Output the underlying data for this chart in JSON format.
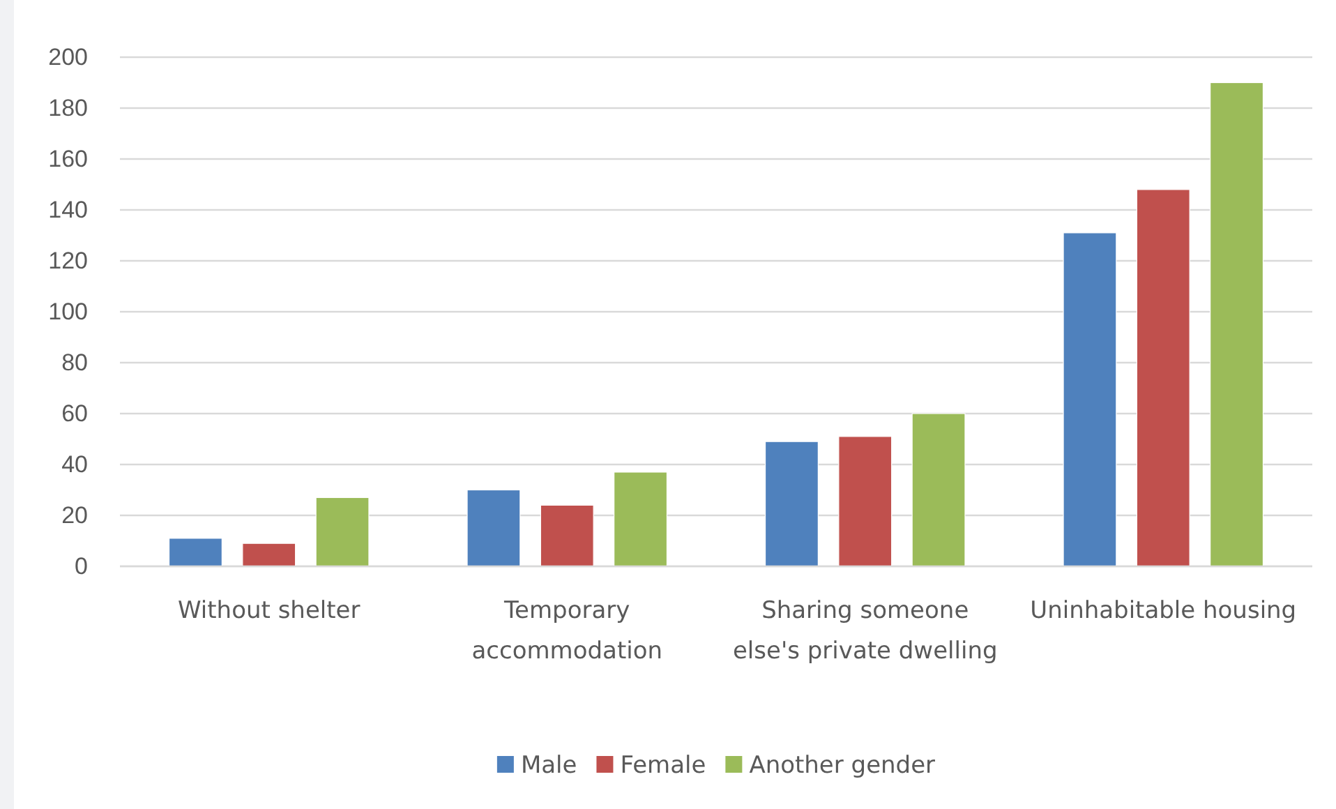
{
  "chart_data": {
    "type": "bar",
    "categories": [
      "Without shelter",
      "Temporary accommodation",
      "Sharing someone else's private dwelling",
      "Uninhabitable housing"
    ],
    "series": [
      {
        "name": "Male",
        "color": "#4f81bd",
        "values": [
          11,
          30,
          49,
          131
        ]
      },
      {
        "name": "Female",
        "color": "#c0504d",
        "values": [
          9,
          24,
          51,
          148
        ]
      },
      {
        "name": "Another gender",
        "color": "#9bbb59",
        "values": [
          27,
          37,
          60,
          190
        ]
      }
    ],
    "ylim": [
      0,
      200
    ],
    "yticks": [
      0,
      20,
      40,
      60,
      80,
      100,
      120,
      140,
      160,
      180,
      200
    ],
    "grid": "y",
    "legend": "bottom"
  }
}
